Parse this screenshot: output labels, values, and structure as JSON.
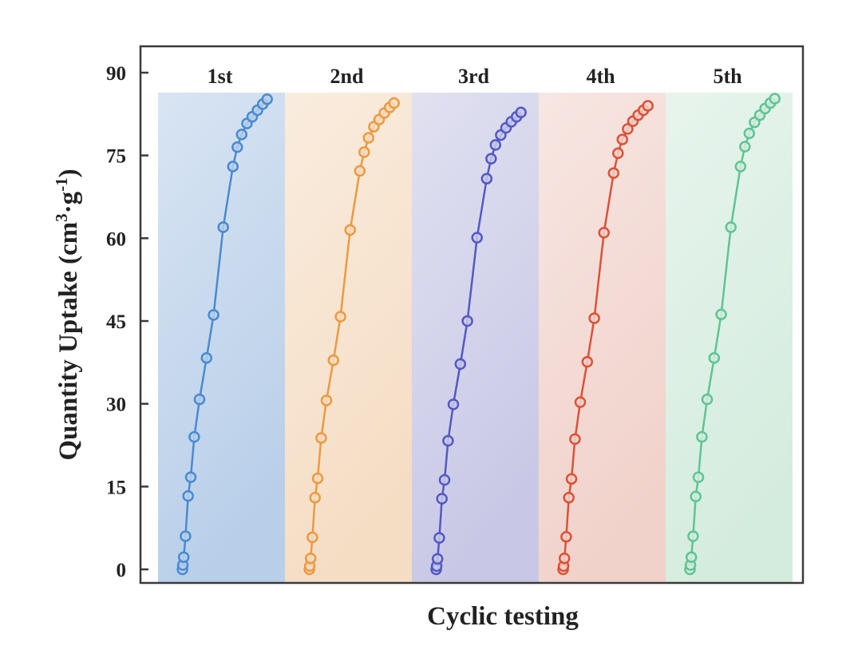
{
  "chart_data": {
    "type": "line",
    "title": "",
    "xlabel": "Cyclic testing",
    "ylabel_main": "Quantity Uptake (cm",
    "ylabel_sup1": "3",
    "ylabel_mid": "·g",
    "ylabel_sup2": "-1",
    "ylabel_end": ")",
    "ylim": [
      0,
      90
    ],
    "yticks": [
      "0",
      "15",
      "30",
      "45",
      "60",
      "75",
      "90"
    ],
    "ytick_values": [
      0,
      15,
      30,
      45,
      60,
      75,
      90
    ],
    "x_units": "relative pressure within each cycle (unlabeled)",
    "grid": false,
    "series": [
      {
        "name": "1st",
        "color": "#4a8ad0",
        "band_color": "#b9cfe9",
        "x": [
          0.005,
          0.01,
          0.02,
          0.04,
          0.07,
          0.1,
          0.14,
          0.2,
          0.28,
          0.36,
          0.47,
          0.58,
          0.63,
          0.68,
          0.74,
          0.8,
          0.86,
          0.92,
          0.97
        ],
        "values": [
          0,
          0.8,
          2.2,
          6.0,
          13.3,
          16.7,
          24.0,
          30.8,
          38.3,
          46.1,
          62.0,
          73.0,
          76.5,
          78.8,
          80.8,
          82.0,
          83.2,
          84.3,
          85.2
        ]
      },
      {
        "name": "2nd",
        "color": "#eb9a40",
        "band_color": "#f5ddc4",
        "x": [
          0.005,
          0.01,
          0.02,
          0.04,
          0.07,
          0.1,
          0.14,
          0.2,
          0.28,
          0.36,
          0.47,
          0.58,
          0.63,
          0.68,
          0.74,
          0.8,
          0.86,
          0.92,
          0.97
        ],
        "values": [
          0,
          0.6,
          2.0,
          5.8,
          13.0,
          16.5,
          23.8,
          30.6,
          37.9,
          45.8,
          61.5,
          72.2,
          75.6,
          78.2,
          80.2,
          81.5,
          82.7,
          83.7,
          84.5
        ]
      },
      {
        "name": "3rd",
        "color": "#5359c2",
        "band_color": "#c8c8e6",
        "x": [
          0.005,
          0.01,
          0.02,
          0.04,
          0.07,
          0.1,
          0.14,
          0.2,
          0.28,
          0.36,
          0.47,
          0.58,
          0.63,
          0.68,
          0.74,
          0.8,
          0.86,
          0.92,
          0.97
        ],
        "values": [
          0,
          0.6,
          1.9,
          5.7,
          12.8,
          16.2,
          23.3,
          29.9,
          37.2,
          45.0,
          60.1,
          70.8,
          74.4,
          76.9,
          78.7,
          80.0,
          81.1,
          82.0,
          82.8
        ]
      },
      {
        "name": "4th",
        "color": "#dc5137",
        "band_color": "#f1d2cb",
        "x": [
          0.005,
          0.01,
          0.02,
          0.04,
          0.07,
          0.1,
          0.14,
          0.2,
          0.28,
          0.36,
          0.47,
          0.58,
          0.63,
          0.68,
          0.74,
          0.8,
          0.86,
          0.92,
          0.97
        ],
        "values": [
          0,
          0.6,
          2.0,
          5.9,
          13.0,
          16.4,
          23.6,
          30.3,
          37.6,
          45.5,
          61.0,
          71.8,
          75.4,
          77.9,
          79.8,
          81.2,
          82.3,
          83.2,
          84.0
        ]
      },
      {
        "name": "5th",
        "color": "#5fc494",
        "band_color": "#d4ecde",
        "x": [
          0.005,
          0.01,
          0.02,
          0.04,
          0.07,
          0.1,
          0.14,
          0.2,
          0.28,
          0.36,
          0.47,
          0.58,
          0.63,
          0.68,
          0.74,
          0.8,
          0.86,
          0.92,
          0.97
        ],
        "values": [
          0,
          0.8,
          2.2,
          6.0,
          13.2,
          16.7,
          24.0,
          30.8,
          38.3,
          46.2,
          62.0,
          73.0,
          76.6,
          79.0,
          81.0,
          82.3,
          83.5,
          84.5,
          85.3
        ]
      }
    ]
  }
}
